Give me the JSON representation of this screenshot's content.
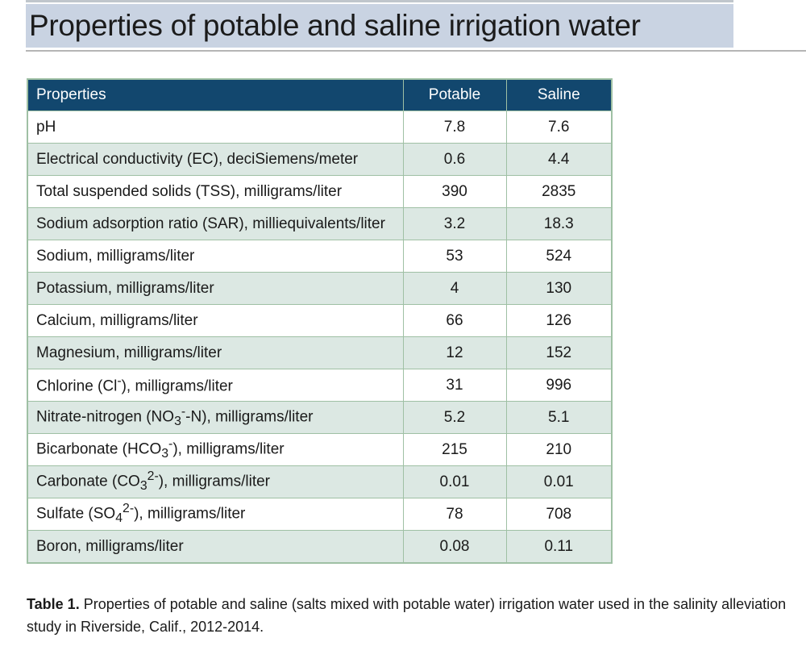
{
  "title": "Properties of potable and saline irrigation water",
  "table": {
    "headers": {
      "property": "Properties",
      "potable": "Potable",
      "saline": "Saline"
    },
    "rows": [
      {
        "property": "pH",
        "potable": "7.8",
        "saline": "7.6"
      },
      {
        "property": "Electrical conductivity (EC), deciSiemens/meter",
        "potable": "0.6",
        "saline": "4.4"
      },
      {
        "property": "Total suspended solids (TSS), milligrams/liter",
        "potable": "390",
        "saline": "2835"
      },
      {
        "property": "Sodium adsorption ratio (SAR), milliequivalents/liter",
        "potable": "3.2",
        "saline": "18.3"
      },
      {
        "property": "Sodium, milligrams/liter",
        "potable": "53",
        "saline": "524"
      },
      {
        "property": "Potassium, milligrams/liter",
        "potable": "4",
        "saline": "130"
      },
      {
        "property": "Calcium, milligrams/liter",
        "potable": "66",
        "saline": "126"
      },
      {
        "property": "Magnesium, milligrams/liter",
        "potable": "12",
        "saline": "152"
      },
      {
        "property_parts": [
          "Chlorine (Cl",
          "-",
          "), milligrams/liter"
        ],
        "potable": "31",
        "saline": "996"
      },
      {
        "property_parts": [
          "Nitrate-nitrogen (NO",
          "3",
          "-",
          "-N), milligrams/liter"
        ],
        "potable": "5.2",
        "saline": "5.1"
      },
      {
        "property_parts": [
          "Bicarbonate (HCO",
          "3",
          "-",
          "), milligrams/liter"
        ],
        "potable": "215",
        "saline": "210"
      },
      {
        "property_parts": [
          "Carbonate (CO",
          "3",
          "2-",
          "), milligrams/liter"
        ],
        "potable": "0.01",
        "saline": "0.01"
      },
      {
        "property_parts": [
          "Sulfate (SO",
          "4",
          "2-",
          "), milligrams/liter"
        ],
        "potable": "78",
        "saline": "708"
      },
      {
        "property": "Boron, milligrams/liter",
        "potable": "0.08",
        "saline": "0.11"
      }
    ]
  },
  "caption": {
    "label": "Table 1.",
    "text": " Properties of potable and saline (salts mixed with potable water) irrigation water used in the salinity alleviation study in Riverside, Calif., 2012-2014."
  },
  "colors": {
    "header_bg": "#12476e",
    "title_band": "#c9d3e2",
    "row_alt": "#dce8e3",
    "grid": "#9fc0a4"
  }
}
